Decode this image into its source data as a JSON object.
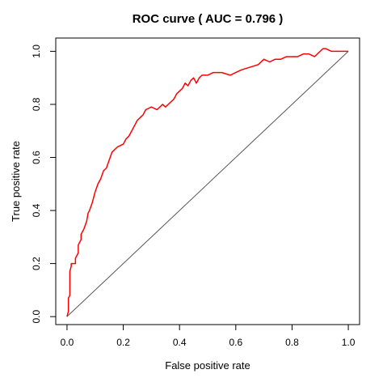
{
  "chart_data": {
    "type": "line",
    "title": "ROC curve ( AUC =  0.796 )",
    "xlabel": "False positive rate",
    "ylabel": "True positive rate",
    "xlim": [
      -0.04,
      1.04
    ],
    "ylim": [
      -0.03,
      1.05
    ],
    "xticks": [
      "0.0",
      "0.2",
      "0.4",
      "0.6",
      "0.8",
      "1.0"
    ],
    "yticks": [
      "0.0",
      "0.2",
      "0.4",
      "0.6",
      "0.8",
      "1.0"
    ],
    "grid": false,
    "series": [
      {
        "color": "#ff0000",
        "x": [
          0.0,
          0.005,
          0.005,
          0.01,
          0.01,
          0.015,
          0.015,
          0.03,
          0.03,
          0.04,
          0.04,
          0.05,
          0.05,
          0.06,
          0.07,
          0.075,
          0.08,
          0.09,
          0.1,
          0.11,
          0.12,
          0.13,
          0.14,
          0.15,
          0.16,
          0.18,
          0.2,
          0.21,
          0.22,
          0.23,
          0.24,
          0.25,
          0.26,
          0.27,
          0.28,
          0.3,
          0.32,
          0.34,
          0.35,
          0.37,
          0.38,
          0.39,
          0.4,
          0.41,
          0.42,
          0.43,
          0.44,
          0.45,
          0.46,
          0.47,
          0.48,
          0.5,
          0.52,
          0.55,
          0.58,
          0.6,
          0.62,
          0.65,
          0.68,
          0.7,
          0.72,
          0.74,
          0.76,
          0.78,
          0.8,
          0.82,
          0.84,
          0.86,
          0.88,
          0.9,
          0.91,
          0.92,
          0.94,
          0.96,
          0.98,
          1.0
        ],
        "y": [
          0.0,
          0.02,
          0.07,
          0.08,
          0.17,
          0.19,
          0.2,
          0.2,
          0.22,
          0.24,
          0.27,
          0.29,
          0.31,
          0.33,
          0.36,
          0.39,
          0.4,
          0.43,
          0.47,
          0.5,
          0.52,
          0.55,
          0.56,
          0.59,
          0.62,
          0.64,
          0.65,
          0.67,
          0.68,
          0.7,
          0.72,
          0.74,
          0.75,
          0.76,
          0.78,
          0.79,
          0.78,
          0.8,
          0.79,
          0.81,
          0.82,
          0.84,
          0.85,
          0.86,
          0.88,
          0.87,
          0.89,
          0.9,
          0.88,
          0.9,
          0.91,
          0.91,
          0.92,
          0.92,
          0.91,
          0.92,
          0.93,
          0.94,
          0.95,
          0.97,
          0.96,
          0.97,
          0.97,
          0.98,
          0.98,
          0.98,
          0.99,
          0.99,
          0.98,
          1.0,
          1.01,
          1.01,
          1.0,
          1.0,
          1.0,
          1.0
        ]
      },
      {
        "color": "#555555",
        "x": [
          0.0,
          1.0
        ],
        "y": [
          0.0,
          1.0
        ]
      }
    ]
  }
}
